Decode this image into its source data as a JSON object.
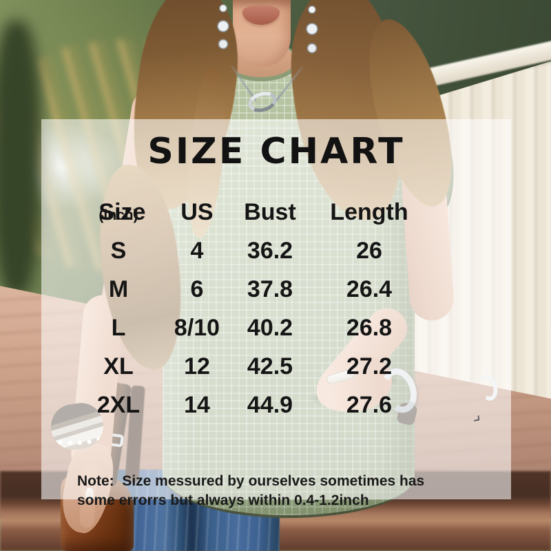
{
  "title": "SIZE CHART",
  "header": {
    "size": "Size",
    "unit": "(inch)",
    "us": "US",
    "bust": "Bust",
    "length": "Length"
  },
  "chart_data": {
    "type": "table",
    "title": "SIZE CHART",
    "unit": "inch",
    "columns": [
      "Size(inch)",
      "US",
      "Bust",
      "Length"
    ],
    "rows": [
      [
        "S",
        "4",
        "36.2",
        "26"
      ],
      [
        "M",
        "6",
        "37.8",
        "26.4"
      ],
      [
        "L",
        "8/10",
        "40.2",
        "26.8"
      ],
      [
        "XL",
        "12",
        "42.5",
        "27.2"
      ],
      [
        "2XL",
        "14",
        "44.9",
        "27.6"
      ]
    ],
    "note": "Note:  Size messured by ourselves sometimes has some errorrs but always within 0.4-1.2inch"
  },
  "note": {
    "line1": "Note:  Size messured by ourselves sometimes has",
    "line2": "some errorrs but always within 0.4-1.2inch"
  },
  "photo": {
    "subject": "model in sage green waffle-knit short-sleeve top, blue jeans, brown leather bag",
    "colors": {
      "top_sage": "#a8b795",
      "foliage_green": "#47553a",
      "fence_cream": "#f3ede0",
      "deck_wood": "#bd937d",
      "jeans_blue": "#3a5f8a",
      "bag_brown": "#7b3f1d",
      "skin": "#e2b294",
      "hair_blonde": "#c4a06c",
      "silver_jewelry": "#dde2e6",
      "text_black": "#151515",
      "overlay_white": "rgba(255,255,255,0.57)"
    }
  }
}
